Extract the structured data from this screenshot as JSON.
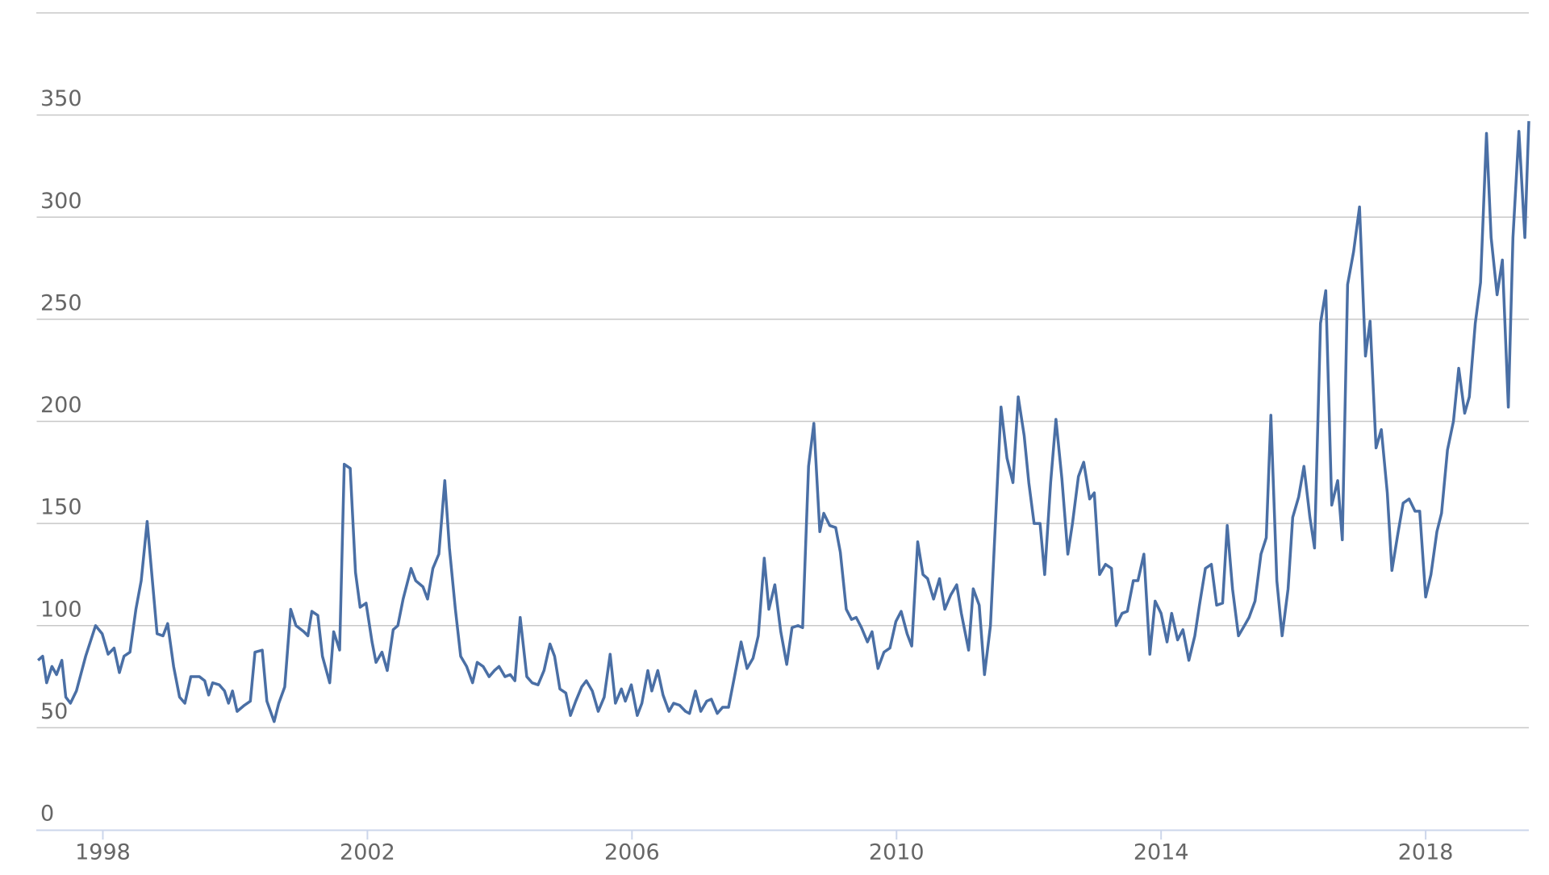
{
  "chart_data": {
    "type": "line",
    "color": "#4a6fa5",
    "grid": true,
    "xlim": [
      1997.0,
      2019.56
    ],
    "xticks": [
      1998,
      2002,
      2006,
      2010,
      2014,
      2018
    ],
    "ylim": [
      0,
      400
    ],
    "yticks": [
      0,
      50,
      100,
      150,
      200,
      250,
      300,
      350
    ],
    "x": [
      1997.02,
      1997.09,
      1997.15,
      1997.23,
      1997.3,
      1997.38,
      1997.44,
      1997.51,
      1997.6,
      1997.74,
      1997.89,
      1997.99,
      1998.08,
      1998.17,
      1998.25,
      1998.32,
      1998.41,
      1998.5,
      1998.58,
      1998.67,
      1998.76,
      1998.82,
      1998.91,
      1998.98,
      1999.07,
      1999.16,
      1999.24,
      1999.33,
      1999.46,
      1999.54,
      1999.6,
      1999.66,
      1999.76,
      1999.84,
      1999.9,
      1999.96,
      2000.03,
      2000.14,
      2000.23,
      2000.3,
      2000.41,
      2000.48,
      2000.59,
      2000.66,
      2000.75,
      2000.84,
      2000.92,
      2001.04,
      2001.1,
      2001.16,
      2001.25,
      2001.32,
      2001.43,
      2001.49,
      2001.58,
      2001.65,
      2001.74,
      2001.82,
      2001.89,
      2001.98,
      2002.07,
      2002.13,
      2002.22,
      2002.3,
      2002.39,
      2002.46,
      2002.54,
      2002.66,
      2002.73,
      2002.84,
      2002.91,
      2002.99,
      2003.08,
      2003.17,
      2003.24,
      2003.33,
      2003.41,
      2003.5,
      2003.59,
      2003.66,
      2003.75,
      2003.84,
      2003.92,
      2003.99,
      2004.08,
      2004.16,
      2004.23,
      2004.31,
      2004.41,
      2004.49,
      2004.58,
      2004.67,
      2004.76,
      2004.83,
      2004.91,
      2005.0,
      2005.07,
      2005.15,
      2005.24,
      2005.31,
      2005.4,
      2005.49,
      2005.58,
      2005.67,
      2005.75,
      2005.84,
      2005.9,
      2005.99,
      2006.08,
      2006.15,
      2006.24,
      2006.3,
      2006.39,
      2006.47,
      2006.56,
      2006.63,
      2006.72,
      2006.81,
      2006.87,
      2006.96,
      2007.04,
      2007.13,
      2007.2,
      2007.29,
      2007.37,
      2007.46,
      2007.55,
      2007.65,
      2007.74,
      2007.83,
      2007.91,
      2008.0,
      2008.07,
      2008.16,
      2008.25,
      2008.34,
      2008.42,
      2008.51,
      2008.58,
      2008.67,
      2008.75,
      2008.84,
      2008.9,
      2008.99,
      2009.08,
      2009.15,
      2009.24,
      2009.32,
      2009.39,
      2009.47,
      2009.56,
      2009.63,
      2009.72,
      2009.81,
      2009.9,
      2009.99,
      2010.07,
      2010.16,
      2010.23,
      2010.32,
      2010.4,
      2010.47,
      2010.56,
      2010.65,
      2010.73,
      2010.82,
      2010.91,
      2010.98,
      2011.09,
      2011.16,
      2011.25,
      2011.33,
      2011.42,
      2011.58,
      2011.67,
      2011.76,
      2011.84,
      2011.93,
      2012.0,
      2012.08,
      2012.17,
      2012.24,
      2012.33,
      2012.41,
      2012.5,
      2012.59,
      2012.66,
      2012.75,
      2012.83,
      2012.92,
      2012.99,
      2013.07,
      2013.16,
      2013.25,
      2013.32,
      2013.41,
      2013.49,
      2013.58,
      2013.65,
      2013.74,
      2013.83,
      2013.91,
      2014.0,
      2014.09,
      2014.16,
      2014.25,
      2014.33,
      2014.42,
      2014.51,
      2014.58,
      2014.67,
      2014.76,
      2014.84,
      2014.93,
      2015.0,
      2015.08,
      2015.17,
      2015.26,
      2015.33,
      2015.42,
      2015.51,
      2015.59,
      2015.66,
      2015.75,
      2015.83,
      2015.92,
      2015.99,
      2016.08,
      2016.16,
      2016.25,
      2016.32,
      2016.41,
      2016.49,
      2016.58,
      2016.67,
      2016.74,
      2016.82,
      2016.91,
      2017.0,
      2017.09,
      2017.16,
      2017.25,
      2017.33,
      2017.42,
      2017.49,
      2017.58,
      2017.66,
      2017.75,
      2017.84,
      2017.91,
      2018.0,
      2018.08,
      2018.17,
      2018.24,
      2018.33,
      2018.42,
      2018.5,
      2018.59,
      2018.66,
      2018.75,
      2018.83,
      2018.92,
      2018.99,
      2019.08,
      2019.16,
      2019.25,
      2019.32,
      2019.41,
      2019.5,
      2019.56
    ],
    "values": [
      83,
      85,
      72,
      80,
      76,
      83,
      65,
      62,
      68,
      85,
      100,
      96,
      86,
      89,
      77,
      85,
      87,
      108,
      122,
      151,
      118,
      96,
      95,
      101,
      80,
      65,
      62,
      75,
      75,
      73,
      66,
      72,
      71,
      68,
      62,
      68,
      58,
      61,
      63,
      87,
      88,
      63,
      53,
      62,
      70,
      108,
      100,
      97,
      95,
      107,
      105,
      85,
      72,
      97,
      88,
      179,
      177,
      126,
      109,
      111,
      92,
      82,
      87,
      78,
      98,
      100,
      113,
      128,
      122,
      119,
      113,
      128,
      135,
      171,
      138,
      108,
      85,
      80,
      72,
      82,
      80,
      75,
      78,
      80,
      75,
      76,
      73,
      104,
      75,
      72,
      71,
      78,
      91,
      85,
      69,
      67,
      56,
      63,
      70,
      73,
      68,
      58,
      65,
      86,
      62,
      69,
      63,
      71,
      56,
      62,
      78,
      68,
      78,
      66,
      58,
      62,
      61,
      58,
      57,
      68,
      58,
      63,
      64,
      57,
      60,
      60,
      75,
      92,
      79,
      84,
      95,
      133,
      108,
      120,
      97,
      81,
      99,
      100,
      99,
      178,
      199,
      146,
      155,
      149,
      148,
      136,
      108,
      103,
      104,
      99,
      92,
      97,
      79,
      87,
      89,
      102,
      107,
      96,
      90,
      141,
      125,
      123,
      113,
      123,
      108,
      115,
      120,
      106,
      88,
      118,
      110,
      76,
      100,
      207,
      182,
      170,
      212,
      193,
      170,
      150,
      150,
      125,
      170,
      201,
      172,
      135,
      150,
      173,
      180,
      162,
      165,
      125,
      130,
      128,
      100,
      106,
      107,
      122,
      122,
      135,
      86,
      112,
      106,
      92,
      106,
      93,
      98,
      83,
      95,
      110,
      128,
      130,
      110,
      111,
      149,
      118,
      95,
      100,
      104,
      112,
      135,
      143,
      203,
      122,
      95,
      118,
      153,
      163,
      178,
      153,
      138,
      248,
      264,
      159,
      171,
      142,
      267,
      283,
      305,
      232,
      249,
      187,
      196,
      165,
      127,
      145,
      160,
      162,
      156,
      156,
      114,
      125,
      146,
      155,
      186,
      200,
      226,
      204,
      212,
      248,
      268,
      341,
      290,
      262,
      279,
      207,
      290,
      342,
      290,
      347
    ]
  }
}
